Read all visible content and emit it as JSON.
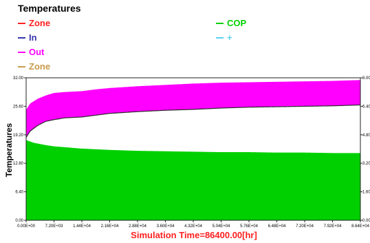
{
  "header": {
    "title": "Temperatures"
  },
  "legend": {
    "left": [
      {
        "label": "Zone",
        "color": "#ff2020"
      },
      {
        "label": "In",
        "color": "#3535b0"
      },
      {
        "label": "Out",
        "color": "#ff00ff"
      },
      {
        "label": "Zone",
        "color": "#c89a4a"
      }
    ],
    "right": [
      {
        "label": "COP",
        "color": "#00d000"
      },
      {
        "label": "+",
        "color": "#5ad2f0"
      }
    ]
  },
  "chart_data": {
    "type": "area",
    "title": "Temperatures",
    "ylabel": "Temperatures",
    "xlabel": "Simulation Time=86400.00[hr]",
    "xlim": [
      0,
      86400
    ],
    "ylim": [
      0,
      32
    ],
    "y2lim": [
      0,
      8
    ],
    "xticks": [
      0,
      7200,
      14400,
      21600,
      28800,
      36000,
      43200,
      50400,
      57600,
      64800,
      72000,
      79200,
      86400
    ],
    "xtick_labels": [
      "0.00E+00",
      "7.20E+03",
      "1.44E+04",
      "2.16E+04",
      "2.88E+04",
      "3.60E+04",
      "4.32E+04",
      "5.04E+04",
      "5.76E+04",
      "6.48E+04",
      "7.20E+04",
      "7.92E+04",
      "8.64E+04"
    ],
    "yticks": [
      0,
      6.4,
      12.8,
      19.2,
      25.6,
      32
    ],
    "ytick_labels": [
      "0.00",
      "6.40",
      "12.80",
      "19.20",
      "25.60",
      "32.00"
    ],
    "y2ticks": [
      0,
      1.6,
      3.2,
      4.8,
      6.4,
      8
    ],
    "y2tick_labels": [
      "0.00",
      "1.60",
      "3.20",
      "4.80",
      "6.40",
      "8.00"
    ],
    "series": [
      {
        "name": "Out",
        "color": "#ff00ff",
        "x": [
          0,
          1000,
          3000,
          5000,
          7200,
          10000,
          14400,
          18000,
          21600,
          28800,
          36000,
          43200,
          50400,
          57600,
          64800,
          72000,
          79200,
          86400
        ],
        "upper": [
          24.8,
          26.2,
          27.3,
          28.0,
          28.6,
          28.8,
          29.0,
          29.4,
          29.7,
          30.1,
          30.4,
          30.7,
          30.9,
          31.0,
          31.1,
          31.2,
          31.3,
          31.5
        ],
        "lower": [
          18.6,
          20.0,
          21.3,
          22.2,
          22.6,
          23.0,
          23.2,
          23.6,
          24.0,
          24.4,
          24.7,
          24.9,
          25.2,
          25.4,
          25.5,
          25.6,
          25.7,
          25.9
        ]
      },
      {
        "name": "COP",
        "color": "#00d000",
        "x": [
          0,
          2000,
          5000,
          7200,
          14400,
          21600,
          28800,
          36000,
          43200,
          50400,
          57600,
          64800,
          72000,
          79200,
          86400
        ],
        "upper": [
          18.0,
          17.4,
          16.9,
          16.6,
          16.1,
          15.8,
          15.6,
          15.5,
          15.4,
          15.3,
          15.3,
          15.2,
          15.2,
          15.1,
          15.1
        ],
        "lower": [
          0,
          0,
          0,
          0,
          0,
          0,
          0,
          0,
          0,
          0,
          0,
          0,
          0,
          0,
          0
        ]
      }
    ]
  }
}
